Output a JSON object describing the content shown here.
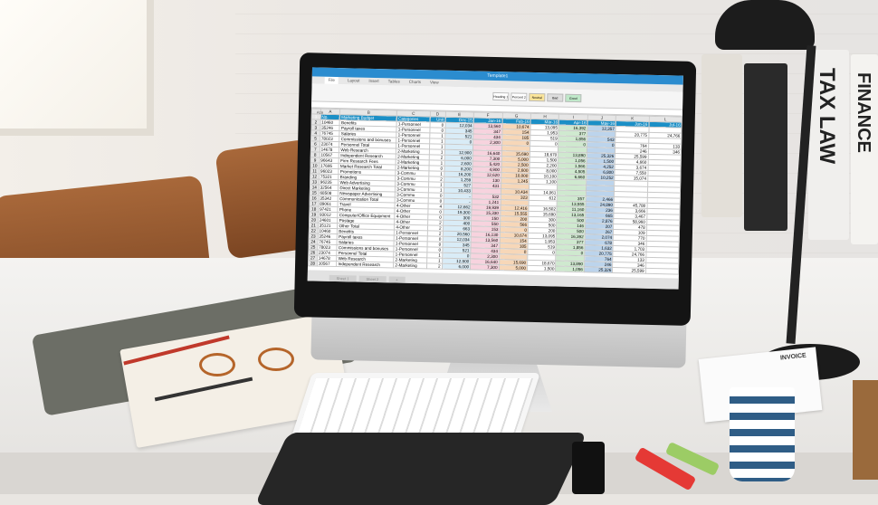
{
  "spreadsheet": {
    "title": "Template1",
    "ribbon_tabs": [
      "File",
      "Layout",
      "Insert",
      "Tables",
      "Charts",
      "View"
    ],
    "cell_styles": [
      "Heading 1",
      "Percent 2",
      "Neutral",
      "Bad",
      "Good"
    ],
    "cell_ref": "A16",
    "columns": [
      "",
      "A",
      "B",
      "C",
      "D",
      "E",
      "F",
      "G",
      "H",
      "I",
      "J",
      "K",
      "L"
    ],
    "header": [
      "1",
      "No.",
      "Marketing Budget",
      "Categories",
      "Unit",
      "Dec-15",
      "Jan-16",
      "Feb-16",
      "Mar-16",
      "Apr-16",
      "May-16",
      "Jun-16",
      "Jul-16"
    ],
    "column_colors": {
      "E": "#d9ecf7",
      "F": "#f7d3de",
      "G": "#f7d7b8",
      "H": "#ffffff",
      "I": "#cfe9cf",
      "J": "#bcd4ec",
      "K": "#ffffff",
      "L": "#ffffff"
    },
    "header_color": "#1b8fc6",
    "rows": [
      [
        "2",
        "10460",
        "Benefits",
        "1-Personnel",
        "0",
        "12,034",
        "13,560",
        "10,674",
        "13,095",
        "16,392",
        "12,357",
        "",
        ""
      ],
      [
        "3",
        "35246",
        "Payroll taxes",
        "1-Personnel",
        "0",
        "345",
        "347",
        "154",
        "1,953",
        "377",
        "",
        "20,775",
        "24,766"
      ],
      [
        "4",
        "76745",
        "Salaries",
        "1-Personnel",
        "1",
        "521",
        "434",
        "185",
        "519",
        "1,856",
        "543",
        "",
        ""
      ],
      [
        "5",
        "78023",
        "Commissions and bonuses",
        "1-Personnel",
        "1",
        "0",
        "2,300",
        "0",
        "0",
        "0",
        "0",
        "764",
        "133"
      ],
      [
        "6",
        "23074",
        "Personnel Total",
        "1-Personnel",
        "1",
        "",
        "",
        "",
        "",
        "",
        "",
        "246",
        "346"
      ],
      [
        "7",
        "14678",
        "Web Research",
        "2-Marketing",
        "1",
        "12,900",
        "16,640",
        "15,690",
        "18,670",
        "13,890",
        "25,326",
        "25,599",
        ""
      ],
      [
        "8",
        "10567",
        "Independent Research",
        "2-Marketing",
        "2",
        "6,000",
        "7,300",
        "5,000",
        "1,500",
        "1,056",
        "1,500",
        "4,660",
        ""
      ],
      [
        "9",
        "96643",
        "Firm Research Fees",
        "2-Marketing",
        "1",
        "2,600",
        "5,420",
        "2,500",
        "2,200",
        "1,566",
        "4,252",
        "3,674",
        ""
      ],
      [
        "10",
        "17695",
        "Market Research Total",
        "2-Marketing",
        "0",
        "8,200",
        "4,900",
        "2,600",
        "8,000",
        "4,505",
        "6,800",
        "7,550",
        ""
      ],
      [
        "11",
        "96023",
        "Promotions",
        "3-Commu",
        "1",
        "16,200",
        "12,620",
        "10,000",
        "10,100",
        "6,660",
        "10,252",
        "15,074",
        ""
      ],
      [
        "12",
        "75321",
        "Branding",
        "3-Commu",
        "2",
        "1,259",
        "130",
        "1,245",
        "1,100",
        "",
        "",
        "",
        ""
      ],
      [
        "13",
        "96235",
        "Web Advertising",
        "3-Commu",
        "1",
        "527",
        "431",
        "",
        "",
        "",
        "",
        "",
        ""
      ],
      [
        "14",
        "32564",
        "Direct Marketing",
        "3-Commu",
        "1",
        "10,433",
        "",
        "10,434",
        "14,061",
        "",
        "",
        "",
        ""
      ],
      [
        "15",
        "68508",
        "Newspaper Advertising",
        "3-Commu",
        "0",
        "-",
        "532",
        "323",
        "612",
        "357",
        "2,466",
        "",
        " "
      ],
      [
        "16",
        "35342",
        "Communication Total",
        "3-Commu",
        "0",
        "-",
        "1,241",
        "",
        "",
        "13,555",
        "24,890",
        "45,780",
        ""
      ],
      [
        "17",
        "89061",
        "Travel",
        "4-Other",
        "4",
        "12,662",
        "19,939",
        "12,416",
        "16,502",
        "11,160",
        "236",
        "3,666",
        ""
      ],
      [
        "18",
        "97421",
        "Phone",
        "4-Other",
        "0",
        "19,300",
        "15,330",
        "15,555",
        "15,690",
        "13,165",
        "665",
        "3,467",
        ""
      ],
      [
        "19",
        "93012",
        "Computer/Office Equipment",
        "4-Other",
        "0",
        "300",
        "150",
        "200",
        "300",
        "500",
        "2,876",
        "58,960",
        ""
      ],
      [
        "20",
        "24601",
        "Postage",
        "4-Other",
        "2",
        "400",
        "550",
        "566",
        "500",
        "146",
        "207",
        "478",
        ""
      ],
      [
        "21",
        "35121",
        "Other Total",
        "4-Other",
        "2",
        "663",
        "153",
        "0",
        "200",
        "500",
        "267",
        "109",
        ""
      ],
      [
        "22",
        "10460",
        "Benefits",
        "1-Personnel",
        "2",
        "20,560",
        "16,130",
        "10,674",
        "13,095",
        "16,392",
        "2,074",
        "770",
        ""
      ],
      [
        "23",
        "35246",
        "Payroll taxes",
        "1-Personnel",
        "0",
        "12,034",
        "13,560",
        "154",
        "1,953",
        "377",
        "678",
        "346",
        ""
      ],
      [
        "24",
        "76745",
        "Salaries",
        "1-Personnel",
        "0",
        "345",
        "347",
        "185",
        "519",
        "1,856",
        "1,632",
        "1,703",
        ""
      ],
      [
        "25",
        "78023",
        "Commissions and bonuses",
        "1-Personnel",
        "0",
        "521",
        "434",
        "0",
        "0",
        "0",
        "20,775",
        "24,766",
        ""
      ],
      [
        "26",
        "23074",
        "Personnel Total",
        "1-Personnel",
        "1",
        "0",
        "2,300",
        "",
        "",
        "",
        "764",
        "133",
        ""
      ],
      [
        "27",
        "14678",
        "Web Research",
        "2-Marketing",
        "1",
        "12,900",
        "16,640",
        "15,690",
        "18,670",
        "13,890",
        "246",
        "346",
        ""
      ],
      [
        "28",
        "10567",
        "Independent Research",
        "2-Marketing",
        "2",
        "6,000",
        "7,300",
        "5,000",
        "1,500",
        "1,056",
        "25,326",
        "25,599",
        ""
      ]
    ],
    "sheet_tabs": [
      "Sheet 1",
      "Sheet 2",
      "+"
    ]
  },
  "binders": {
    "tax_law": "TAX LAW",
    "finance": "FINANCE"
  },
  "invoice": "INVOICE"
}
